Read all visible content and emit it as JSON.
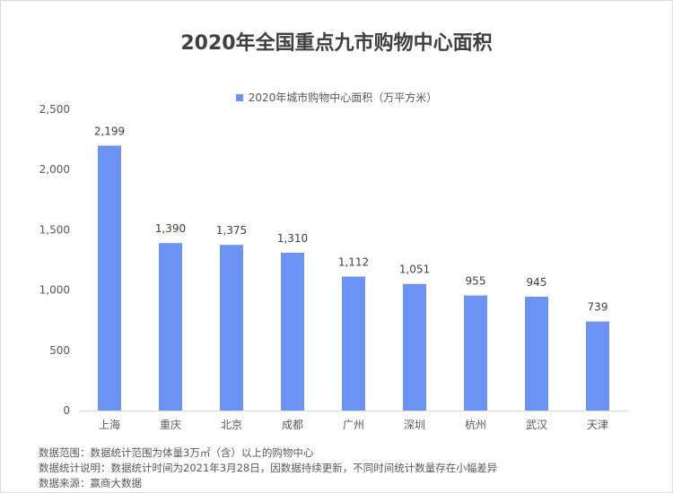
{
  "title": "2020年全国重点九市购物中心面积",
  "chart_data": {
    "type": "bar",
    "title": "2020年全国重点九市购物中心面积",
    "categories": [
      "上海",
      "重庆",
      "北京",
      "成都",
      "广州",
      "深圳",
      "杭州",
      "武汉",
      "天津"
    ],
    "series": [
      {
        "name": "2020年城市购物中心面积（万平方米）",
        "values": [
          2199,
          1390,
          1375,
          1310,
          1112,
          1051,
          955,
          945,
          739
        ],
        "labels": [
          "2,199",
          "1,390",
          "1,375",
          "1,310",
          "1,112",
          "1,051",
          "955",
          "945",
          "739"
        ],
        "color": "#6d94f5"
      }
    ],
    "ylim": [
      0,
      2500
    ],
    "yticks": [
      0,
      500,
      1000,
      1500,
      2000,
      2500
    ],
    "ytick_labels": [
      "0",
      "500",
      "1,000",
      "1,500",
      "2,000",
      "2,500"
    ],
    "xlabel": "",
    "ylabel": "",
    "grid": false,
    "legend": "top-center"
  },
  "notes": {
    "scope": "数据范围：数据统计范围为体量3万㎡（含）以上的购物中心",
    "method": "数据统计说明：数据统计时间为2021年3月28日，因数据持续更新，不同时间统计数量存在小幅差异",
    "source": "数据来源：赢商大数据"
  }
}
